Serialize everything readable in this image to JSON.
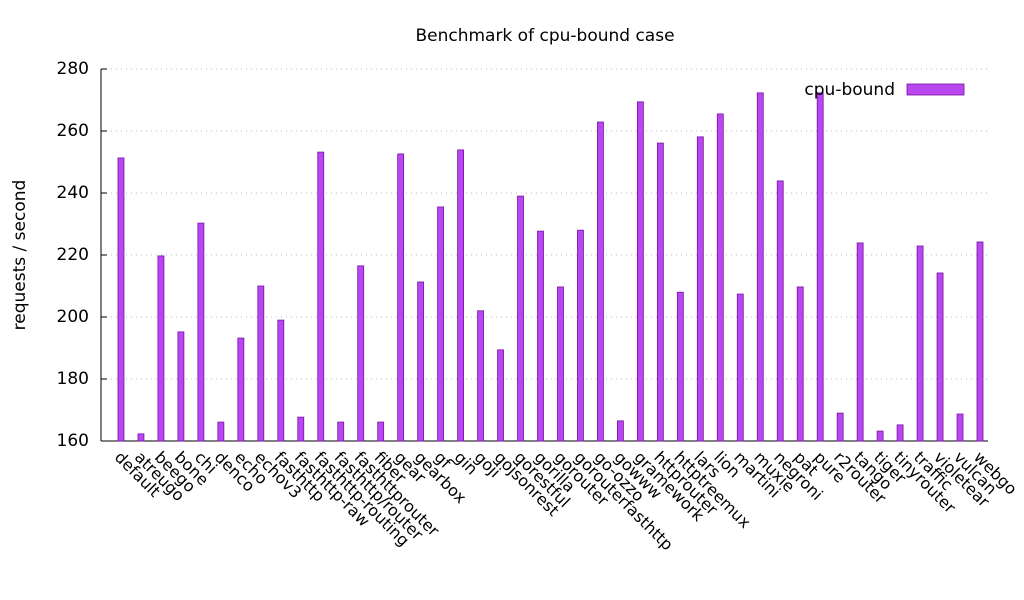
{
  "chart_data": {
    "type": "bar",
    "title": "Benchmark of cpu-bound case",
    "y_label": "requests / second",
    "categories": [
      "default",
      "atreugo",
      "beego",
      "bone",
      "chi",
      "denco",
      "echo",
      "echov3",
      "fasthttp",
      "fasthttp-raw",
      "fasthttp-routing",
      "fasthttp/router",
      "fasthttprouter",
      "fiber",
      "gear",
      "gearbox",
      "gf",
      "gin",
      "goji",
      "gojsonrest",
      "gorestful",
      "gorilla",
      "gorouter",
      "gorouterfasthttp",
      "go-ozzo",
      "gowww",
      "gramework",
      "httprouter",
      "httptreemux",
      "lars",
      "lion",
      "martini",
      "muxie",
      "negroni",
      "pat",
      "pure",
      "r2router",
      "tango",
      "tiger",
      "tinyrouter",
      "traffic",
      "violetear",
      "vulcan",
      "webgo"
    ],
    "series": [
      {
        "name": "cpu-bound",
        "color": "#b847f0",
        "values": [
          251.3,
          162.3,
          219.7,
          195.2,
          230.3,
          166.1,
          193.2,
          210,
          199,
          167.7,
          253.2,
          166.1,
          216.5,
          166.1,
          252.6,
          211.3,
          235.5,
          253.9,
          202,
          189.4,
          239,
          227.7,
          209.7,
          228,
          262.9,
          166.5,
          269.4,
          256.1,
          208,
          258.1,
          265.5,
          207.4,
          272.3,
          243.9,
          209.7,
          272.3,
          169,
          223.9,
          163.2,
          165.2,
          222.9,
          214.2,
          168.7,
          224.2
        ]
      }
    ],
    "ylim": [
      160,
      280
    ],
    "yticks": [
      160,
      180,
      200,
      220,
      240,
      260,
      280
    ],
    "grid": true,
    "legend": "top-right"
  }
}
